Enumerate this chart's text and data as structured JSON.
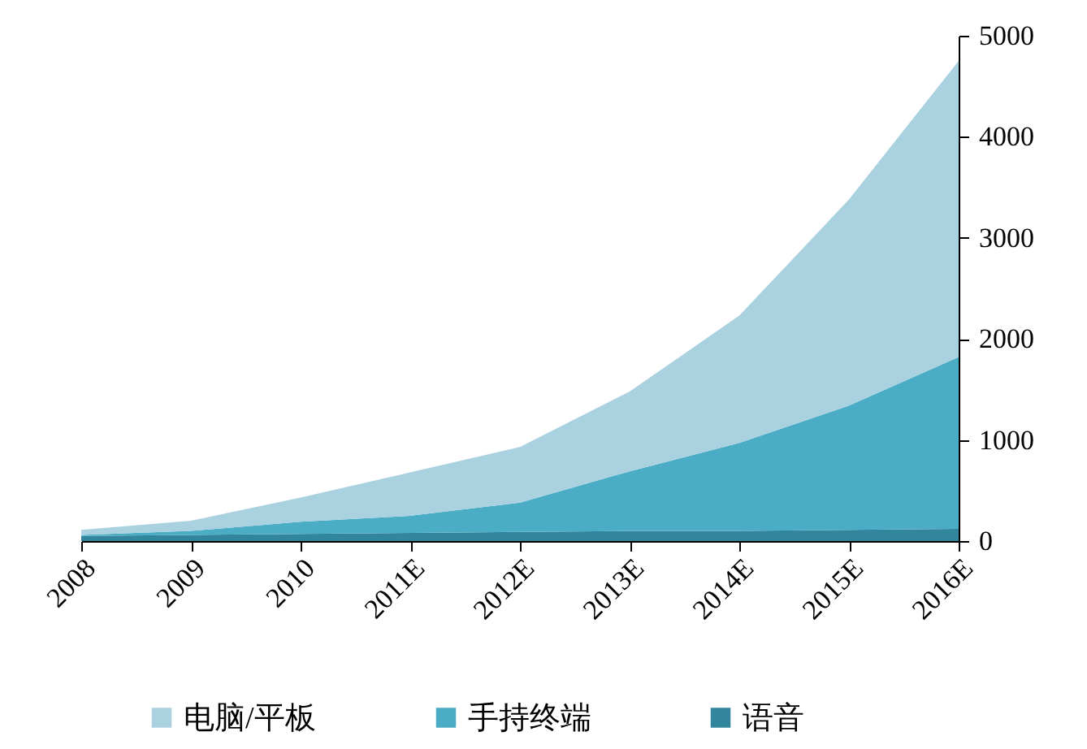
{
  "chart_data": {
    "type": "area",
    "stacked": true,
    "categories": [
      "2008",
      "2009",
      "2010",
      "2011E",
      "2012E",
      "2013E",
      "2014E",
      "2015E",
      "2016E"
    ],
    "series": [
      {
        "name": "语音",
        "color": "#31859c",
        "values": [
          50,
          60,
          70,
          80,
          90,
          100,
          100,
          110,
          120
        ]
      },
      {
        "name": "手持终端",
        "color": "#4bacc6",
        "values": [
          10,
          40,
          120,
          170,
          290,
          590,
          870,
          1230,
          1700
        ]
      },
      {
        "name": "电脑/平板",
        "color": "#a9d1df",
        "values": [
          50,
          100,
          240,
          430,
          550,
          790,
          1260,
          2040,
          2930
        ]
      }
    ],
    "ylim": [
      0,
      5000
    ],
    "yticks": [
      0,
      1000,
      2000,
      3000,
      4000,
      5000
    ],
    "grid": false,
    "legend": "bottom"
  }
}
